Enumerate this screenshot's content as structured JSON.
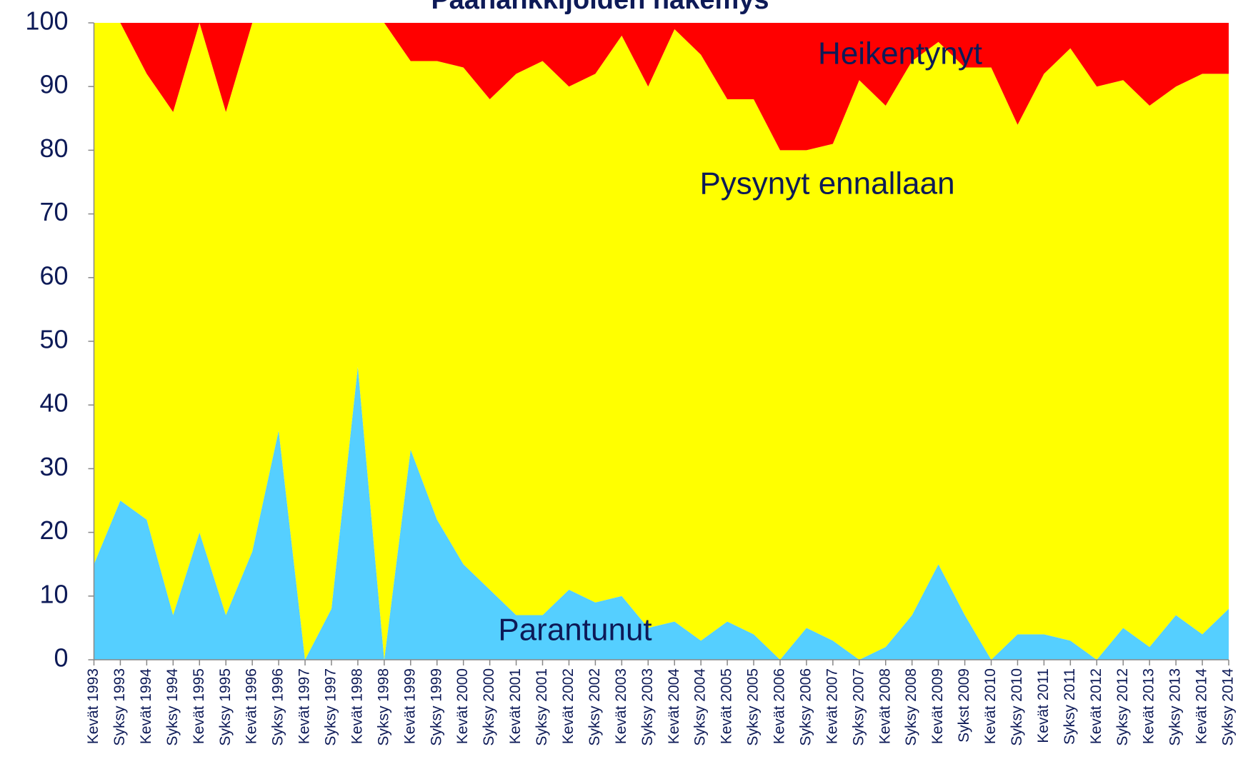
{
  "chart_data": {
    "type": "stacked_area",
    "title": "Päähankkijoiden näkemys",
    "categories": [
      "Kevät 1993",
      "Syksy 1993",
      "Kevät 1994",
      "Syksy 1994",
      "Kevät 1995",
      "Syksy 1995",
      "Kevät 1996",
      "Syksy 1996",
      "Kevät 1997",
      "Syksy 1997",
      "Kevät 1998",
      "Syksy 1998",
      "Kevät 1999",
      "Syksy 1999",
      "Kevät 2000",
      "Syksy 2000",
      "Kevät 2001",
      "Syksy 2001",
      "Kevät 2002",
      "Syksy 2002",
      "Kevät 2003",
      "Syksy 2003",
      "Kevät 2004",
      "Syksy 2004",
      "Kevät 2005",
      "Syksy 2005",
      "Kevät 2006",
      "Syksy 2006",
      "Kevät 2007",
      "Syksy 2007",
      "Kevät 2008",
      "Syksy 2008",
      "Kevät 2009",
      "Sykst 2009",
      "Kevät 2010",
      "Syksy 2010",
      "Kevät 2011",
      "Syksy 2011",
      "Kevät 2012",
      "Syksy 2012",
      "Kevät 2013",
      "Syksy 2013",
      "Kevät 2014",
      "Syksy 2014"
    ],
    "series": [
      {
        "name": "Parantunut",
        "color": "#55cfff",
        "values": [
          15,
          25,
          22,
          7,
          20,
          7,
          17,
          36,
          0,
          8,
          46,
          0,
          33,
          22,
          15,
          11,
          7,
          7,
          11,
          9,
          10,
          5,
          6,
          3,
          6,
          4,
          0,
          5,
          3,
          0,
          2,
          7,
          15,
          7,
          0,
          4,
          4,
          3,
          0,
          5,
          2,
          7,
          4,
          8
        ]
      },
      {
        "name": "Pysynyt ennallaan",
        "color": "#ffff00",
        "values": [
          85,
          75,
          70,
          79,
          80,
          79,
          83,
          64,
          100,
          92,
          54,
          100,
          61,
          72,
          78,
          77,
          85,
          87,
          79,
          83,
          88,
          85,
          93,
          92,
          82,
          84,
          80,
          75,
          78,
          91,
          85,
          87,
          82,
          86,
          93,
          80,
          88,
          93,
          90,
          86,
          85,
          83,
          88,
          84
        ]
      },
      {
        "name": "Heikentynyt",
        "color": "#ff0000",
        "values": [
          0,
          0,
          8,
          14,
          0,
          14,
          0,
          0,
          0,
          0,
          0,
          0,
          6,
          6,
          7,
          12,
          8,
          6,
          10,
          8,
          2,
          10,
          1,
          5,
          12,
          12,
          20,
          20,
          19,
          9,
          13,
          6,
          3,
          7,
          7,
          16,
          8,
          4,
          10,
          9,
          13,
          10,
          8,
          8
        ]
      }
    ],
    "ylim": [
      0,
      100
    ],
    "yticks": [
      0,
      10,
      20,
      30,
      40,
      50,
      60,
      70,
      80,
      90,
      100
    ],
    "grid": false
  }
}
